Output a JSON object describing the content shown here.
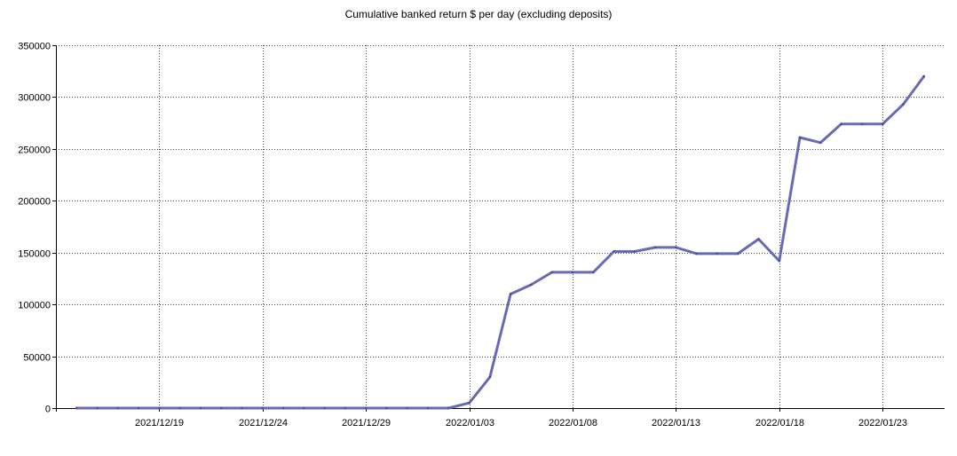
{
  "chart_data": {
    "type": "line",
    "title": "Cumulative banked return $ per day (excluding deposits)",
    "xlabel": "",
    "ylabel": "",
    "x_range": [
      "2021/12/14",
      "2022/01/26"
    ],
    "ylim": [
      0,
      350000
    ],
    "y_ticks": [
      0,
      50000,
      100000,
      150000,
      200000,
      250000,
      300000,
      350000
    ],
    "y_tick_labels": [
      "0",
      "50000",
      "100000",
      "150000",
      "200000",
      "250000",
      "300000",
      "350000"
    ],
    "x_ticks": [
      "2021/12/19",
      "2021/12/24",
      "2021/12/29",
      "2022/01/03",
      "2022/01/08",
      "2022/01/13",
      "2022/01/18",
      "2022/01/23"
    ],
    "grid": true,
    "legend": "none",
    "line_color": "#6a6ab4",
    "series": [
      {
        "x": [
          "2021/12/15",
          "2021/12/16",
          "2021/12/17",
          "2021/12/18",
          "2021/12/19",
          "2021/12/20",
          "2021/12/21",
          "2021/12/22",
          "2021/12/23",
          "2021/12/24",
          "2021/12/25",
          "2021/12/26",
          "2021/12/27",
          "2021/12/28",
          "2021/12/29",
          "2021/12/30",
          "2021/12/31",
          "2022/01/01",
          "2022/01/02",
          "2022/01/03",
          "2022/01/04",
          "2022/01/05",
          "2022/01/06",
          "2022/01/07",
          "2022/01/08",
          "2022/01/09",
          "2022/01/10",
          "2022/01/11",
          "2022/01/12",
          "2022/01/13",
          "2022/01/14",
          "2022/01/15",
          "2022/01/16",
          "2022/01/17",
          "2022/01/18",
          "2022/01/19",
          "2022/01/20",
          "2022/01/21",
          "2022/01/22",
          "2022/01/23",
          "2022/01/24",
          "2022/01/25"
        ],
        "values": [
          0,
          0,
          0,
          0,
          0,
          0,
          0,
          0,
          0,
          0,
          0,
          0,
          0,
          0,
          0,
          0,
          0,
          0,
          0,
          5000,
          30000,
          110000,
          119000,
          131000,
          131000,
          131000,
          151000,
          151000,
          155000,
          155000,
          149000,
          149000,
          149000,
          163000,
          142000,
          261000,
          256000,
          274000,
          274000,
          274000,
          293000,
          320000
        ]
      }
    ]
  }
}
